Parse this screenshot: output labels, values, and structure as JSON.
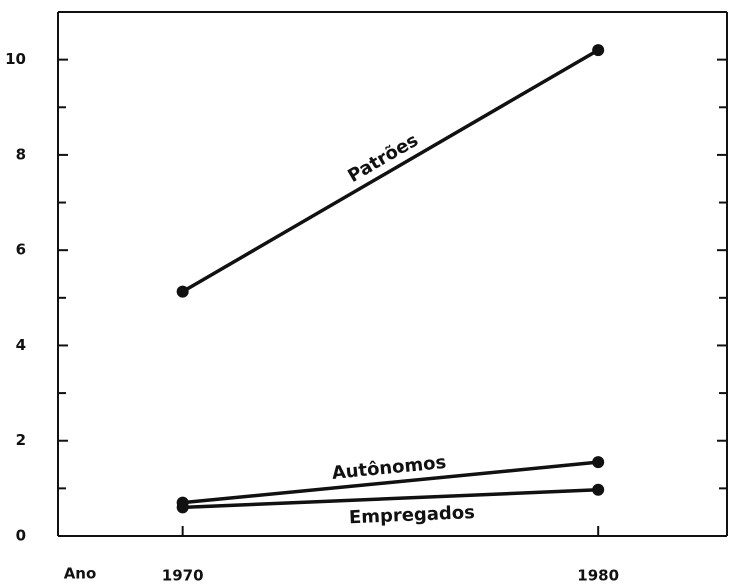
{
  "chart_data": {
    "type": "line",
    "x": [
      1970,
      1980
    ],
    "xlim": [
      1967,
      1983.1
    ],
    "xticks": [
      1970,
      1980
    ],
    "xlabel": "Ano",
    "ylim": [
      0,
      11
    ],
    "yticks": [
      0,
      2,
      4,
      6,
      8,
      10
    ],
    "yminorticks": [
      1,
      3,
      5,
      7,
      9
    ],
    "series": [
      {
        "name": "Patrões",
        "color": "#111111",
        "values": [
          5.13,
          10.2
        ]
      },
      {
        "name": "Autônomos",
        "color": "#111111",
        "values": [
          0.7,
          1.55
        ]
      },
      {
        "name": "Empregados",
        "color": "#111111",
        "values": [
          0.6,
          0.97
        ]
      }
    ]
  }
}
